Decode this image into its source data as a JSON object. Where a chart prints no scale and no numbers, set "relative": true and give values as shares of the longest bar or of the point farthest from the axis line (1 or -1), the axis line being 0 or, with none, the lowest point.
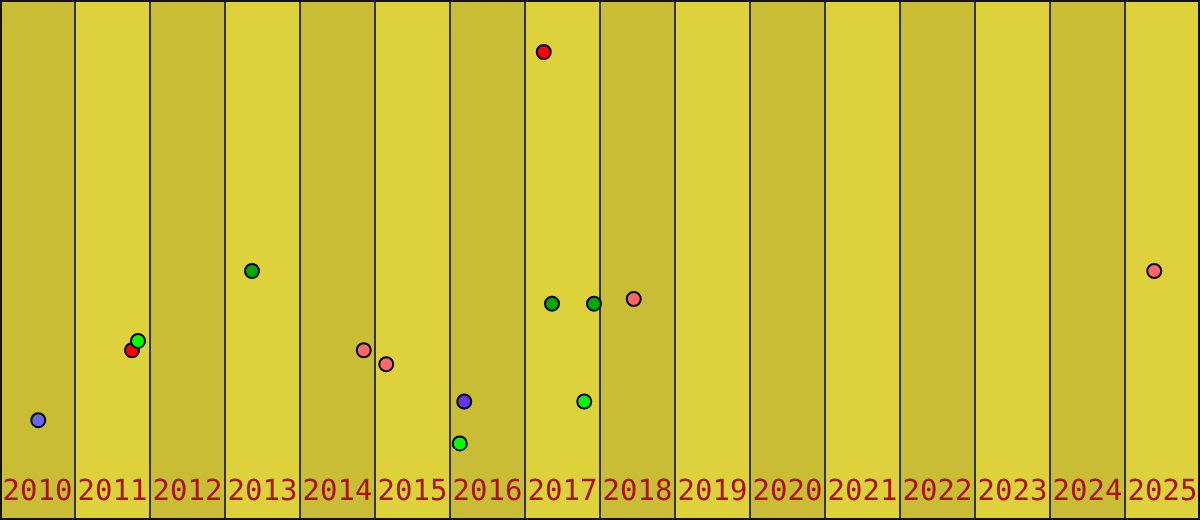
{
  "chart_data": {
    "type": "scatter",
    "relative": true,
    "xlim": [
      2010,
      2026
    ],
    "xticks": [
      {
        "value": 2010.5,
        "label": "2010"
      },
      {
        "value": 2011.5,
        "label": "2011"
      },
      {
        "value": 2012.5,
        "label": "2012"
      },
      {
        "value": 2013.5,
        "label": "2013"
      },
      {
        "value": 2014.5,
        "label": "2014"
      },
      {
        "value": 2015.5,
        "label": "2015"
      },
      {
        "value": 2016.5,
        "label": "2016"
      },
      {
        "value": 2017.5,
        "label": "2017"
      },
      {
        "value": 2018.5,
        "label": "2018"
      },
      {
        "value": 2019.5,
        "label": "2019"
      },
      {
        "value": 2020.5,
        "label": "2020"
      },
      {
        "value": 2021.5,
        "label": "2021"
      },
      {
        "value": 2022.5,
        "label": "2022"
      },
      {
        "value": 2023.5,
        "label": "2023"
      },
      {
        "value": 2024.5,
        "label": "2024"
      },
      {
        "value": 2025.5,
        "label": "2025"
      }
    ],
    "marker": "circle",
    "bands": [
      {
        "axis": "x",
        "from": 2010,
        "to": 2011,
        "color": "#c8bd35"
      },
      {
        "axis": "x",
        "from": 2012,
        "to": 2013,
        "color": "#c8bd35"
      },
      {
        "axis": "x",
        "from": 2014,
        "to": 2015,
        "color": "#c8bd35"
      },
      {
        "axis": "x",
        "from": 2016,
        "to": 2017,
        "color": "#c8bd35"
      },
      {
        "axis": "x",
        "from": 2018,
        "to": 2019,
        "color": "#c8bd35"
      },
      {
        "axis": "x",
        "from": 2020,
        "to": 2021,
        "color": "#c8bd35"
      },
      {
        "axis": "x",
        "from": 2022,
        "to": 2023,
        "color": "#c8bd35"
      },
      {
        "axis": "x",
        "from": 2024,
        "to": 2025,
        "color": "#c8bd35"
      }
    ],
    "series": [
      {
        "color": "#ff0000",
        "x": [
          2011.76,
          2017.25
        ],
        "values": [
          0.36,
          1
        ]
      },
      {
        "color": "#00ff00",
        "x": [
          2011.84,
          2016.13,
          2017.79
        ],
        "values": [
          0.38,
          0.16,
          0.25
        ]
      },
      {
        "color": "#00aa00",
        "x": [
          2013.36,
          2017.36,
          2017.92
        ],
        "values": [
          0.53,
          0.46,
          0.46
        ]
      },
      {
        "color": "#ff6666",
        "x": [
          2014.85,
          2015.15,
          2018.45,
          2025.39
        ],
        "values": [
          0.36,
          0.33,
          0.47,
          0.53
        ]
      },
      {
        "color": "#6666ee",
        "x": [
          2010.51
        ],
        "values": [
          0.21
        ]
      },
      {
        "color": "#6633ee",
        "x": [
          2016.19
        ],
        "values": [
          0.25
        ]
      }
    ]
  }
}
